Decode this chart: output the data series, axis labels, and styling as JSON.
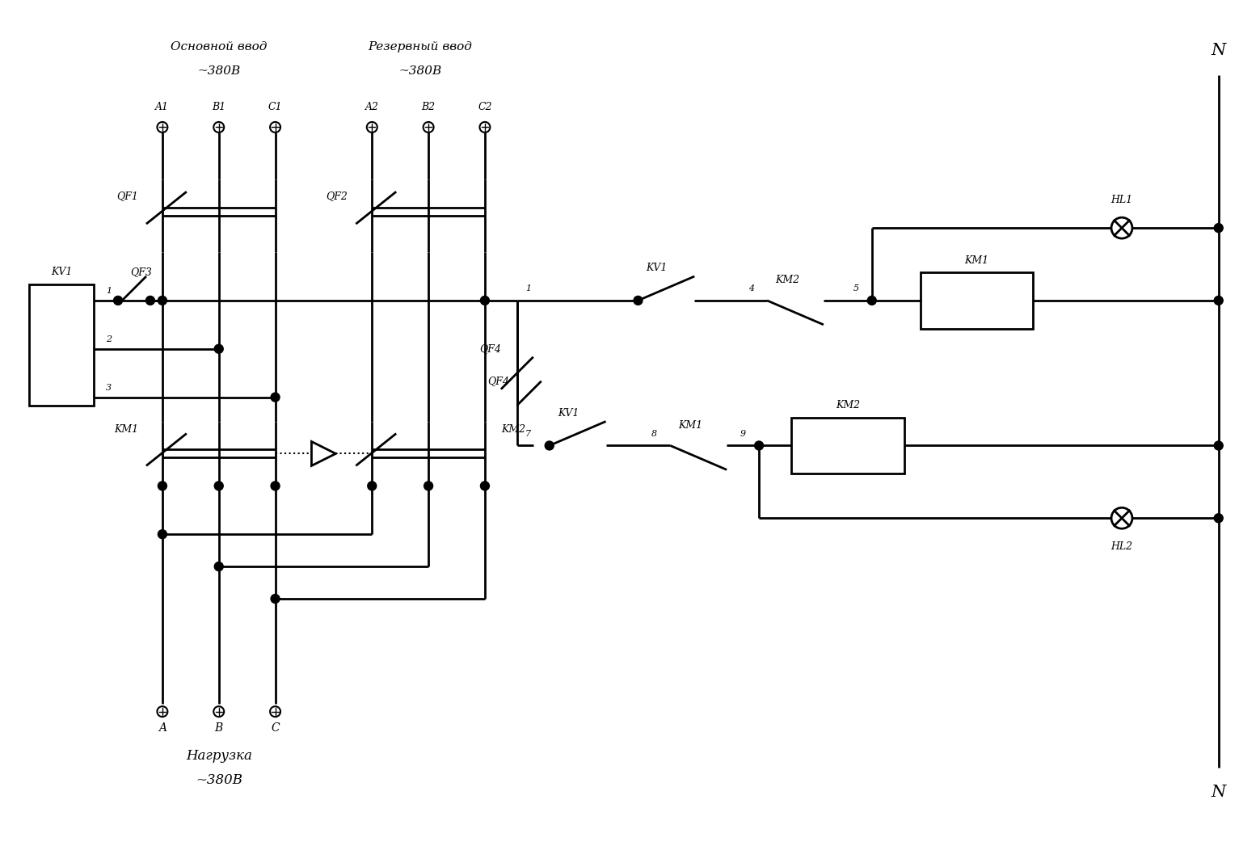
{
  "bg_color": "#ffffff",
  "lc": "#000000",
  "lw": 2.0,
  "fig_w": 15.59,
  "fig_h": 10.73,
  "xmax": 156,
  "ymax": 107,
  "texts": {
    "main_input1": "Основной ввод",
    "main_input2": "~380В",
    "res_input1": "Резервный ввод",
    "res_input2": "~380В",
    "A1": "A1",
    "B1": "B1",
    "C1": "C1",
    "A2": "A2",
    "B2": "B2",
    "C2": "C2",
    "QF1": "QF1",
    "QF2": "QF2",
    "QF3": "QF3",
    "QF4": "QF4",
    "KV1": "KV1",
    "KM1_main": "KM1",
    "KM2_main": "KM2",
    "KM1_coil": "KM1",
    "KM2_coil": "KM2",
    "HL1": "HL1",
    "HL2": "HL2",
    "N_top": "N",
    "N_bot": "N",
    "A": "A",
    "B": "B",
    "C": "C",
    "load1": "Нагрузка",
    "load2": "~380В",
    "n1": "1",
    "KV1a": "KV1",
    "n4": "4",
    "KM2nc": "KM2",
    "n5": "5",
    "n7": "7",
    "KV1b": "KV1",
    "n8": "8",
    "KM1nc": "KM1",
    "n9": "9",
    "nqf3_1": "1",
    "nqf3_2": "2",
    "nqf3_3": "3"
  }
}
